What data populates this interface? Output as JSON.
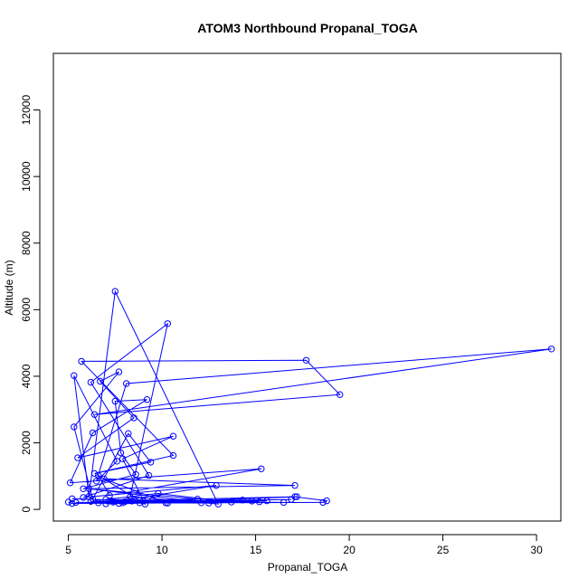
{
  "chart_data": {
    "type": "line",
    "title": "ATOM3 Northbound Propanal_TOGA",
    "xlabel": "Propanal_TOGA",
    "ylabel": "Altitude (m)",
    "xlim": [
      4.2,
      31.3
    ],
    "ylim": [
      -350,
      13700
    ],
    "xticks": [
      5,
      10,
      15,
      20,
      25,
      30
    ],
    "yticks": [
      0,
      2000,
      4000,
      6000,
      8000,
      10000,
      12000
    ],
    "markers": "open circles connected by lines",
    "color": "#0000ff",
    "series": [
      {
        "points": [
          [
            5.0,
            220
          ],
          [
            5.2,
            180
          ],
          [
            18.6,
            210
          ],
          [
            18.8,
            260
          ],
          [
            17.1,
            380
          ],
          [
            6.2,
            240
          ],
          [
            8.0,
            230
          ],
          [
            16.9,
            300
          ],
          [
            6.6,
            200
          ],
          [
            9.5,
            280
          ],
          [
            17.2,
            380
          ],
          [
            7.7,
            180
          ],
          [
            11.9,
            310
          ],
          [
            6.1,
            620
          ],
          [
            12.5,
            190
          ],
          [
            5.4,
            210
          ],
          [
            13.7,
            220
          ],
          [
            9.8,
            480
          ],
          [
            7.0,
            300
          ],
          [
            15.2,
            230
          ],
          [
            8.2,
            260
          ],
          [
            14.3,
            280
          ],
          [
            10.3,
            190
          ],
          [
            6.9,
            920
          ],
          [
            17.1,
            720
          ],
          [
            5.8,
            620
          ],
          [
            8.6,
            1050
          ],
          [
            7.8,
            1700
          ],
          [
            7.5,
            3250
          ],
          [
            9.2,
            3300
          ],
          [
            6.3,
            2300
          ],
          [
            5.1,
            800
          ],
          [
            15.3,
            1220
          ],
          [
            7.2,
            420
          ],
          [
            6.6,
            1020
          ],
          [
            9.1,
            160
          ],
          [
            7.9,
            1520
          ],
          [
            10.6,
            2200
          ],
          [
            5.5,
            1550
          ],
          [
            8.5,
            2750
          ],
          [
            6.7,
            3850
          ],
          [
            7.7,
            4130
          ],
          [
            5.3,
            2480
          ],
          [
            6.3,
            310
          ],
          [
            8.2,
            2280
          ],
          [
            9.4,
            1420
          ],
          [
            6.4,
            1080
          ],
          [
            10.6,
            1620
          ],
          [
            5.7,
            4450
          ],
          [
            17.7,
            4480
          ],
          [
            19.5,
            3450
          ],
          [
            6.4,
            2850
          ],
          [
            30.8,
            4820
          ],
          [
            8.1,
            3780
          ],
          [
            6.5,
            850
          ],
          [
            7.6,
            1450
          ],
          [
            5.3,
            4020
          ],
          [
            6.1,
            390
          ],
          [
            7.5,
            6550
          ],
          [
            13.0,
            160
          ],
          [
            8.3,
            380
          ],
          [
            10.3,
            5580
          ],
          [
            6.2,
            3820
          ],
          [
            9.3,
            1020
          ],
          [
            5.8,
            360
          ],
          [
            12.9,
            720
          ],
          [
            7.4,
            220
          ],
          [
            12.1,
            200
          ],
          [
            5.2,
            320
          ],
          [
            9.0,
            250
          ],
          [
            10.2,
            200
          ],
          [
            7.0,
            170
          ],
          [
            15.6,
            260
          ],
          [
            8.8,
            200
          ],
          [
            14.8,
            250
          ],
          [
            7.3,
            260
          ],
          [
            8.4,
            250
          ],
          [
            16.5,
            210
          ],
          [
            7.9,
            200
          ]
        ]
      }
    ]
  }
}
